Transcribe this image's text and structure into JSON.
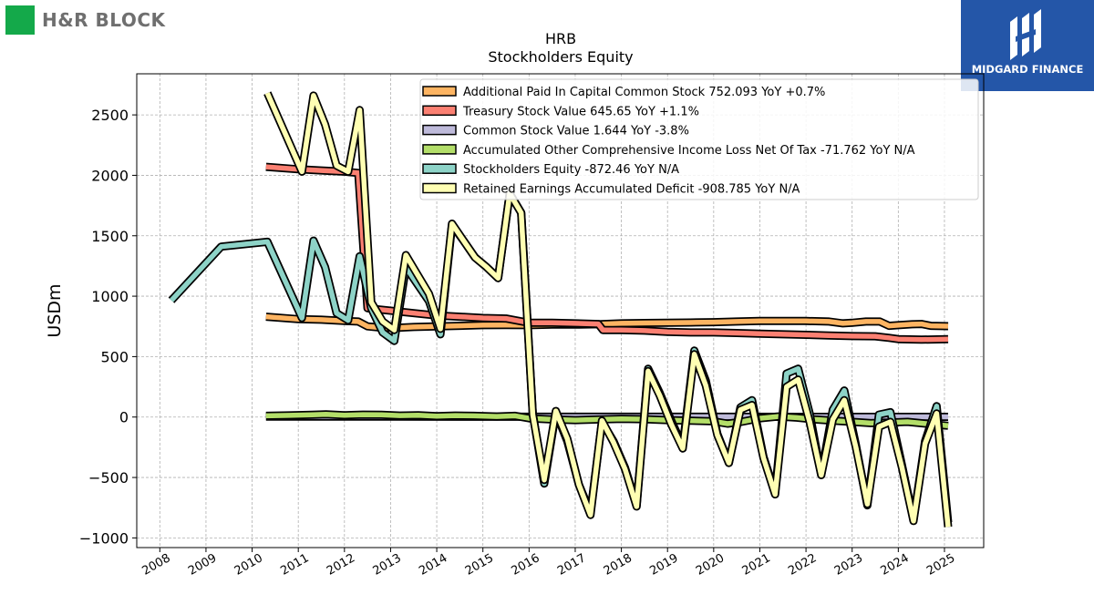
{
  "branding": {
    "left_logo_text": "H&R BLOCK",
    "left_logo_color": "#14a94a",
    "right_logo_text": "MIDGARD FINANCE",
    "right_logo_color": "#2456a8"
  },
  "chart_data": {
    "type": "line",
    "title": "HRB",
    "subtitle": "Stockholders  Equity",
    "xlabel": "",
    "ylabel": "USDm",
    "xlim": [
      2007.5,
      2025.85
    ],
    "ylim": [
      -1080,
      2840
    ],
    "yticks": [
      2500,
      2000,
      1500,
      1000,
      500,
      0,
      -500,
      -1000
    ],
    "ytick_labels": [
      "2500",
      "2000",
      "1500",
      "1000",
      "500",
      "0",
      "−500",
      "−1000"
    ],
    "xticks": [
      2008,
      2009,
      2010,
      2011,
      2012,
      2013,
      2014,
      2015,
      2016,
      2017,
      2018,
      2019,
      2020,
      2021,
      2022,
      2023,
      2024,
      2025
    ],
    "xtick_labels": [
      "2008",
      "2009",
      "2010",
      "2011",
      "2012",
      "2013",
      "2014",
      "2015",
      "2016",
      "2017",
      "2018",
      "2019",
      "2020",
      "2021",
      "2022",
      "2023",
      "2024",
      "2025"
    ],
    "grid": true,
    "legend_position": "top-right",
    "series": [
      {
        "name": "Additional Paid In Capital Common Stock  752.093 YoY +0.7%",
        "color": "#fdb462",
        "points": [
          [
            2010.3,
            830
          ],
          [
            2011.0,
            810
          ],
          [
            2011.5,
            805
          ],
          [
            2012.0,
            795
          ],
          [
            2012.3,
            790
          ],
          [
            2012.5,
            750
          ],
          [
            2012.8,
            740
          ],
          [
            2013.2,
            740
          ],
          [
            2013.5,
            745
          ],
          [
            2014.0,
            750
          ],
          [
            2014.5,
            755
          ],
          [
            2015.0,
            760
          ],
          [
            2015.5,
            762
          ],
          [
            2016.0,
            760
          ],
          [
            2016.5,
            765
          ],
          [
            2017.0,
            765
          ],
          [
            2017.5,
            768
          ],
          [
            2018.0,
            775
          ],
          [
            2018.5,
            778
          ],
          [
            2019.0,
            780
          ],
          [
            2019.5,
            782
          ],
          [
            2020.0,
            785
          ],
          [
            2020.5,
            790
          ],
          [
            2021.0,
            795
          ],
          [
            2021.5,
            795
          ],
          [
            2022.0,
            795
          ],
          [
            2022.5,
            790
          ],
          [
            2022.8,
            775
          ],
          [
            2023.0,
            780
          ],
          [
            2023.3,
            790
          ],
          [
            2023.6,
            790
          ],
          [
            2023.8,
            755
          ],
          [
            2024.0,
            760
          ],
          [
            2024.3,
            768
          ],
          [
            2024.5,
            770
          ],
          [
            2024.7,
            755
          ],
          [
            2025.08,
            752
          ]
        ]
      },
      {
        "name": "Treasury Stock Value  645.65 YoY +1.1%",
        "color": "#fb8072",
        "points": [
          [
            2010.3,
            2070
          ],
          [
            2011.0,
            2050
          ],
          [
            2011.5,
            2040
          ],
          [
            2012.0,
            2030
          ],
          [
            2012.3,
            2020
          ],
          [
            2012.5,
            900
          ],
          [
            2013.0,
            880
          ],
          [
            2013.5,
            860
          ],
          [
            2014.0,
            840
          ],
          [
            2014.5,
            830
          ],
          [
            2015.0,
            820
          ],
          [
            2015.5,
            815
          ],
          [
            2016.0,
            780
          ],
          [
            2016.5,
            780
          ],
          [
            2017.0,
            775
          ],
          [
            2017.5,
            770
          ],
          [
            2017.6,
            720
          ],
          [
            2018.0,
            720
          ],
          [
            2018.5,
            715
          ],
          [
            2019.0,
            705
          ],
          [
            2019.5,
            700
          ],
          [
            2020.0,
            700
          ],
          [
            2020.5,
            695
          ],
          [
            2021.0,
            690
          ],
          [
            2021.5,
            685
          ],
          [
            2022.0,
            680
          ],
          [
            2022.5,
            675
          ],
          [
            2023.0,
            670
          ],
          [
            2023.5,
            668
          ],
          [
            2023.8,
            655
          ],
          [
            2024.0,
            645
          ],
          [
            2024.5,
            640
          ],
          [
            2025.08,
            645
          ]
        ]
      },
      {
        "name": "Common Stock Value  1.644 YoY -3.8%",
        "color": "#bebada",
        "points": [
          [
            2010.3,
            3
          ],
          [
            2013.0,
            3
          ],
          [
            2016.0,
            2.5
          ],
          [
            2019.0,
            2.2
          ],
          [
            2022.0,
            2
          ],
          [
            2025.08,
            1.6
          ]
        ]
      },
      {
        "name": "Accumulated Other Comprehensive Income Loss Net Of Tax  -71.762 YoY N/A",
        "color": "#b3de69",
        "points": [
          [
            2010.3,
            10
          ],
          [
            2010.8,
            14
          ],
          [
            2011.3,
            18
          ],
          [
            2011.6,
            22
          ],
          [
            2012.0,
            15
          ],
          [
            2012.4,
            20
          ],
          [
            2012.8,
            18
          ],
          [
            2013.2,
            12
          ],
          [
            2013.6,
            15
          ],
          [
            2014.0,
            8
          ],
          [
            2014.4,
            12
          ],
          [
            2014.8,
            10
          ],
          [
            2015.3,
            5
          ],
          [
            2015.7,
            10
          ],
          [
            2016.0,
            -10
          ],
          [
            2016.5,
            -20
          ],
          [
            2017.0,
            -25
          ],
          [
            2017.5,
            -20
          ],
          [
            2018.0,
            -15
          ],
          [
            2018.5,
            -18
          ],
          [
            2019.0,
            -25
          ],
          [
            2019.5,
            -30
          ],
          [
            2020.0,
            -35
          ],
          [
            2020.3,
            -55
          ],
          [
            2020.6,
            -40
          ],
          [
            2021.0,
            -10
          ],
          [
            2021.4,
            5
          ],
          [
            2021.8,
            -5
          ],
          [
            2022.2,
            -20
          ],
          [
            2022.6,
            -30
          ],
          [
            2023.0,
            -40
          ],
          [
            2023.4,
            -50
          ],
          [
            2023.8,
            -45
          ],
          [
            2024.2,
            -40
          ],
          [
            2024.6,
            -55
          ],
          [
            2025.08,
            -71.762
          ]
        ]
      },
      {
        "name": "Stockholders Equity  -872.46 YoY N/A",
        "color": "#8dd3c7",
        "points": [
          [
            2008.25,
            965
          ],
          [
            2009.33,
            1410
          ],
          [
            2010.33,
            1450
          ],
          [
            2011.08,
            820
          ],
          [
            2011.33,
            1460
          ],
          [
            2011.58,
            1240
          ],
          [
            2011.83,
            860
          ],
          [
            2012.08,
            800
          ],
          [
            2012.33,
            1330
          ],
          [
            2012.58,
            900
          ],
          [
            2012.83,
            700
          ],
          [
            2013.08,
            630
          ],
          [
            2013.33,
            1240
          ],
          [
            2013.58,
            1100
          ],
          [
            2013.83,
            960
          ],
          [
            2014.08,
            685
          ],
          [
            2014.33,
            1590
          ],
          [
            2014.58,
            1460
          ],
          [
            2014.83,
            1320
          ],
          [
            2015.08,
            1240
          ],
          [
            2015.33,
            1150
          ],
          [
            2015.58,
            1850
          ],
          [
            2015.83,
            1690
          ],
          [
            2016.08,
            30
          ],
          [
            2016.33,
            -550
          ],
          [
            2016.58,
            40
          ],
          [
            2016.83,
            -200
          ],
          [
            2017.08,
            -560
          ],
          [
            2017.33,
            -790
          ],
          [
            2017.58,
            -40
          ],
          [
            2017.83,
            -200
          ],
          [
            2018.08,
            -420
          ],
          [
            2018.33,
            -730
          ],
          [
            2018.58,
            400
          ],
          [
            2018.83,
            200
          ],
          [
            2019.08,
            -30
          ],
          [
            2019.33,
            -240
          ],
          [
            2019.58,
            550
          ],
          [
            2019.83,
            300
          ],
          [
            2020.08,
            -140
          ],
          [
            2020.33,
            -380
          ],
          [
            2020.58,
            80
          ],
          [
            2020.83,
            140
          ],
          [
            2021.08,
            -330
          ],
          [
            2021.33,
            -630
          ],
          [
            2021.58,
            360
          ],
          [
            2021.83,
            400
          ],
          [
            2022.08,
            30
          ],
          [
            2022.33,
            -480
          ],
          [
            2022.58,
            60
          ],
          [
            2022.83,
            220
          ],
          [
            2023.08,
            -230
          ],
          [
            2023.33,
            -730
          ],
          [
            2023.58,
            20
          ],
          [
            2023.83,
            40
          ],
          [
            2024.08,
            -400
          ],
          [
            2024.33,
            -850
          ],
          [
            2024.58,
            -200
          ],
          [
            2024.83,
            90
          ],
          [
            2025.08,
            -872.46
          ]
        ]
      },
      {
        "name": "Retained Earnings Accumulated Deficit  -908.785 YoY N/A",
        "color": "#ffffb3",
        "points": [
          [
            2010.33,
            2680
          ],
          [
            2011.08,
            2030
          ],
          [
            2011.33,
            2660
          ],
          [
            2011.58,
            2420
          ],
          [
            2011.83,
            2080
          ],
          [
            2012.08,
            2030
          ],
          [
            2012.33,
            2540
          ],
          [
            2012.58,
            950
          ],
          [
            2012.83,
            790
          ],
          [
            2013.08,
            720
          ],
          [
            2013.33,
            1340
          ],
          [
            2013.58,
            1180
          ],
          [
            2013.83,
            1020
          ],
          [
            2014.08,
            730
          ],
          [
            2014.33,
            1600
          ],
          [
            2014.58,
            1460
          ],
          [
            2014.83,
            1320
          ],
          [
            2015.08,
            1240
          ],
          [
            2015.33,
            1150
          ],
          [
            2015.58,
            1850
          ],
          [
            2015.83,
            1690
          ],
          [
            2016.08,
            20
          ],
          [
            2016.33,
            -520
          ],
          [
            2016.58,
            50
          ],
          [
            2016.83,
            -180
          ],
          [
            2017.08,
            -560
          ],
          [
            2017.33,
            -810
          ],
          [
            2017.58,
            -30
          ],
          [
            2017.83,
            -210
          ],
          [
            2018.08,
            -430
          ],
          [
            2018.33,
            -740
          ],
          [
            2018.58,
            380
          ],
          [
            2018.83,
            180
          ],
          [
            2019.08,
            -60
          ],
          [
            2019.33,
            -260
          ],
          [
            2019.58,
            520
          ],
          [
            2019.83,
            260
          ],
          [
            2020.08,
            -150
          ],
          [
            2020.33,
            -380
          ],
          [
            2020.58,
            60
          ],
          [
            2020.83,
            100
          ],
          [
            2021.08,
            -340
          ],
          [
            2021.33,
            -640
          ],
          [
            2021.58,
            250
          ],
          [
            2021.83,
            310
          ],
          [
            2022.08,
            -40
          ],
          [
            2022.33,
            -480
          ],
          [
            2022.58,
            -20
          ],
          [
            2022.83,
            140
          ],
          [
            2023.08,
            -250
          ],
          [
            2023.33,
            -720
          ],
          [
            2023.58,
            -80
          ],
          [
            2023.83,
            -40
          ],
          [
            2024.08,
            -420
          ],
          [
            2024.33,
            -860
          ],
          [
            2024.58,
            -220
          ],
          [
            2024.83,
            30
          ],
          [
            2025.08,
            -908.785
          ]
        ]
      }
    ]
  }
}
